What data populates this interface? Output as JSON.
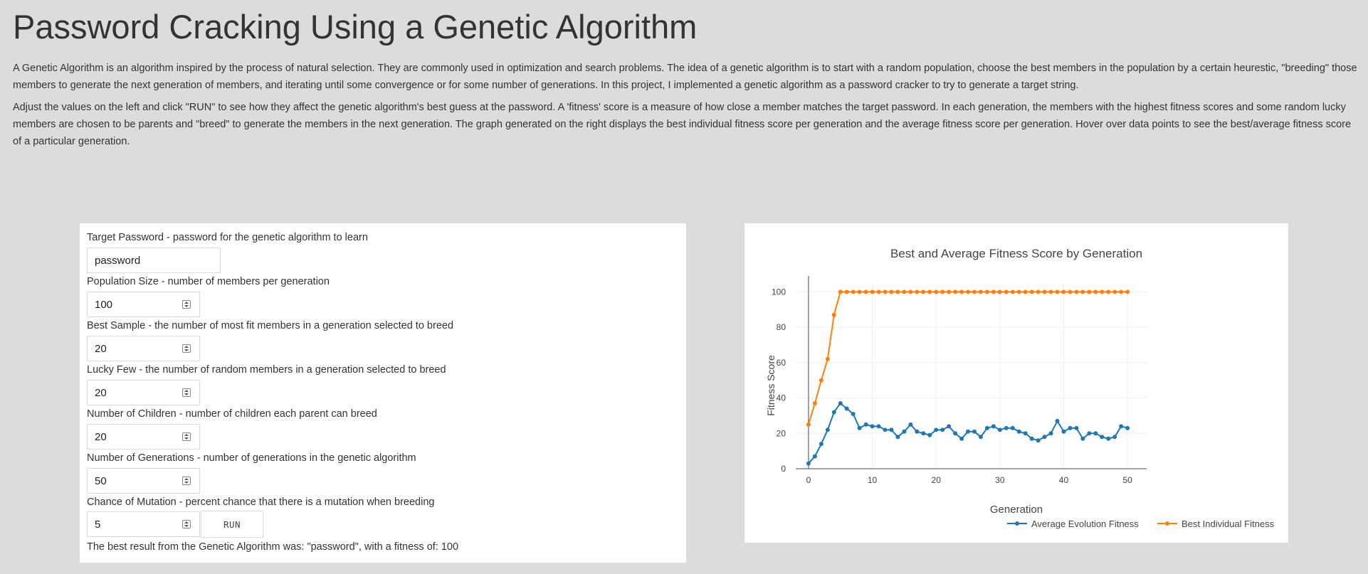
{
  "page": {
    "title": "Password Cracking Using a Genetic Algorithm",
    "paragraphs": [
      "A Genetic Algorithm is an algorithm inspired by the process of natural selection. They are commonly used in optimization and search problems. The idea of a genetic algorithm is to start with a random population, choose the best members in the population by a certain heurestic, \"breeding\" those members to generate the next generation of members, and iterating until some convergence or for some number of generations. In this project, I implemented a genetic algorithm as a password cracker to try to generate a target string.",
      "Adjust the values on the left and click \"RUN\" to see how they affect the genetic algorithm's best guess at the password. A 'fitness' score is a measure of how close a member matches the target password. In each generation, the members with the highest fitness scores and some random lucky members are chosen to be parents and \"breed\" to generate the members in the next generation. The graph generated on the right displays the best individual fitness score per generation and the average fitness score per generation. Hover over data points to see the best/average fitness score of a particular generation."
    ]
  },
  "form": {
    "fields": [
      {
        "label": "Target Password - password for the genetic algorithm to learn",
        "value": "password"
      },
      {
        "label": "Population Size - number of members per generation",
        "value": "100"
      },
      {
        "label": "Best Sample - the number of most fit members in a generation selected to breed",
        "value": "20"
      },
      {
        "label": "Lucky Few - the number of random members in a generation selected to breed",
        "value": "20"
      },
      {
        "label": "Number of Children - number of children each parent can breed",
        "value": "20"
      },
      {
        "label": "Number of Generations - number of generations in the genetic algorithm",
        "value": "50"
      },
      {
        "label": "Chance of Mutation - percent chance that there is a mutation when breeding",
        "value": "5"
      }
    ],
    "run_label": "RUN",
    "result_text": "The best result from the Genetic Algorithm was: \"password\", with a fitness of: 100"
  },
  "chart_data": {
    "type": "line",
    "title": "Best and Average Fitness Score by Generation",
    "xlabel": "Generation",
    "ylabel": "Fitness Score",
    "xlim": [
      -2,
      53
    ],
    "ylim": [
      0,
      105
    ],
    "xticks": [
      0,
      10,
      20,
      30,
      40,
      50
    ],
    "yticks": [
      0,
      20,
      40,
      60,
      80,
      100
    ],
    "grid": true,
    "legend_position": "bottom-right",
    "x": [
      0,
      1,
      2,
      3,
      4,
      5,
      6,
      7,
      8,
      9,
      10,
      11,
      12,
      13,
      14,
      15,
      16,
      17,
      18,
      19,
      20,
      21,
      22,
      23,
      24,
      25,
      26,
      27,
      28,
      29,
      30,
      31,
      32,
      33,
      34,
      35,
      36,
      37,
      38,
      39,
      40,
      41,
      42,
      43,
      44,
      45,
      46,
      47,
      48,
      49,
      50
    ],
    "series": [
      {
        "name": "Average Evolution Fitness",
        "color": "#1f77b4",
        "values": [
          3,
          7,
          14,
          22,
          32,
          37,
          34,
          31,
          23,
          25,
          24,
          24,
          22,
          22,
          18,
          21,
          25,
          21,
          20,
          19,
          22,
          22,
          24,
          20,
          17,
          21,
          21,
          18,
          23,
          24,
          22,
          23,
          23,
          21,
          20,
          17,
          16,
          18,
          20,
          27,
          21,
          23,
          23,
          17,
          20,
          20,
          18,
          17,
          18,
          24,
          23
        ]
      },
      {
        "name": "Best Individual Fitness",
        "color": "#ff7f0e",
        "values": [
          25,
          37,
          50,
          62,
          87,
          100,
          100,
          100,
          100,
          100,
          100,
          100,
          100,
          100,
          100,
          100,
          100,
          100,
          100,
          100,
          100,
          100,
          100,
          100,
          100,
          100,
          100,
          100,
          100,
          100,
          100,
          100,
          100,
          100,
          100,
          100,
          100,
          100,
          100,
          100,
          100,
          100,
          100,
          100,
          100,
          100,
          100,
          100,
          100,
          100,
          100
        ]
      }
    ]
  }
}
